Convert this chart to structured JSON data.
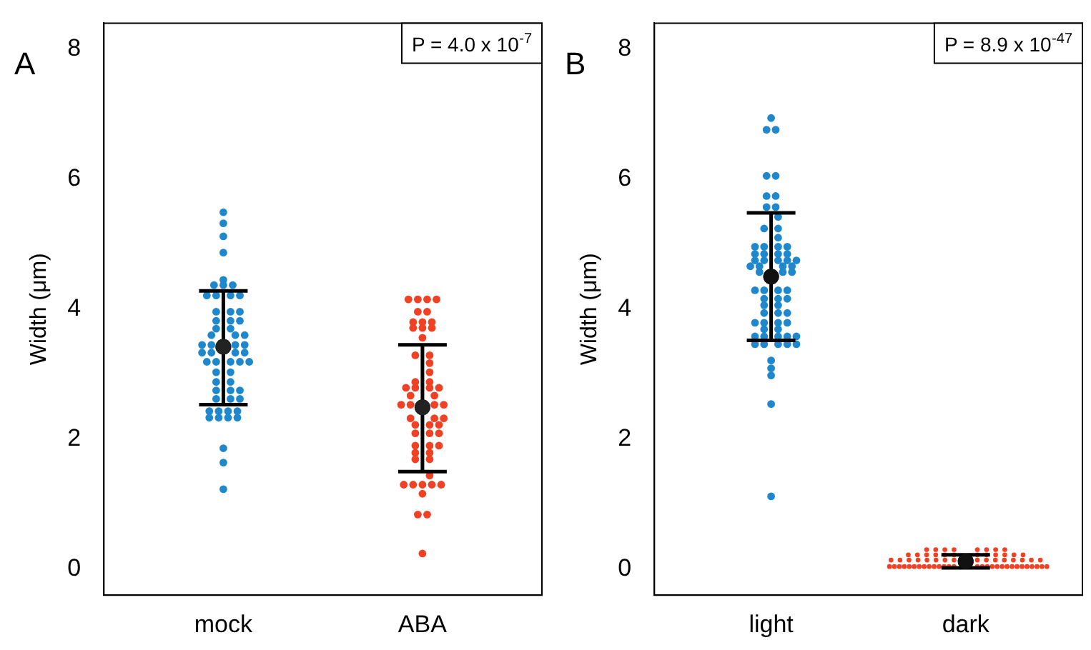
{
  "chart_data": [
    {
      "type": "scatter",
      "categories": [
        "mock",
        "ABA"
      ],
      "ylabel": "Width (μm)",
      "ylim": [
        -0.4,
        8.4
      ],
      "yticks": [
        0,
        2,
        4,
        6,
        8
      ],
      "grid": false,
      "legend": false,
      "marker": "circle",
      "annotations": [
        "A",
        "P = 4.0 x 10$^{-7}$"
      ],
      "series": [
        {
          "color": "#1f88cc",
          "x": [
            "mock",
            "mock",
            "mock",
            "mock",
            "mock",
            "mock",
            "mock",
            "mock",
            "mock",
            "mock",
            "mock",
            "mock",
            "mock",
            "mock",
            "mock",
            "mock",
            "mock",
            "mock",
            "mock",
            "mock",
            "mock",
            "mock",
            "mock",
            "mock",
            "mock",
            "mock",
            "mock",
            "mock",
            "mock",
            "mock",
            "mock",
            "mock",
            "mock",
            "mock",
            "mock",
            "mock",
            "mock",
            "mock",
            "mock",
            "mock",
            "mock",
            "mock",
            "mock",
            "mock",
            "mock",
            "mock",
            "mock",
            "mock",
            "mock",
            "mock",
            "mock",
            "mock",
            "mock",
            "mock",
            "mock",
            "mock",
            "mock"
          ],
          "values": [
            5.49,
            5.32,
            5.12,
            4.87,
            4.45,
            4.37,
            4.37,
            4.37,
            4.21,
            4.21,
            4.21,
            4.21,
            3.96,
            3.96,
            3.96,
            3.82,
            3.82,
            3.82,
            3.7,
            3.7,
            3.6,
            3.6,
            3.6,
            3.45,
            3.45,
            3.45,
            3.45,
            3.33,
            3.33,
            3.33,
            3.33,
            3.19,
            3.19,
            3.19,
            3.19,
            3.19,
            3.03,
            3.03,
            2.88,
            2.88,
            2.75,
            2.75,
            2.75,
            2.62,
            2.62,
            2.62,
            2.43,
            2.43,
            2.43,
            2.43,
            2.33,
            2.33,
            2.33,
            2.33,
            1.86,
            1.64,
            1.23
          ]
        },
        {
          "color": "#f04124",
          "x": [
            "ABA",
            "ABA",
            "ABA",
            "ABA",
            "ABA",
            "ABA",
            "ABA",
            "ABA",
            "ABA",
            "ABA",
            "ABA",
            "ABA",
            "ABA",
            "ABA",
            "ABA",
            "ABA",
            "ABA",
            "ABA",
            "ABA",
            "ABA",
            "ABA",
            "ABA",
            "ABA",
            "ABA",
            "ABA",
            "ABA",
            "ABA",
            "ABA",
            "ABA",
            "ABA",
            "ABA",
            "ABA",
            "ABA",
            "ABA",
            "ABA",
            "ABA",
            "ABA",
            "ABA",
            "ABA",
            "ABA",
            "ABA",
            "ABA",
            "ABA",
            "ABA",
            "ABA",
            "ABA",
            "ABA",
            "ABA",
            "ABA",
            "ABA",
            "ABA",
            "ABA",
            "ABA",
            "ABA",
            "ABA"
          ],
          "values": [
            4.15,
            4.15,
            4.15,
            4.15,
            3.96,
            3.96,
            3.8,
            3.8,
            3.8,
            3.71,
            3.71,
            3.71,
            3.56,
            3.29,
            3.29,
            3.17,
            3.03,
            2.88,
            2.88,
            2.79,
            2.79,
            2.79,
            2.79,
            2.67,
            2.67,
            2.53,
            2.53,
            2.53,
            2.53,
            2.32,
            2.32,
            2.32,
            2.22,
            2.22,
            2.22,
            2.09,
            2.09,
            2.09,
            1.9,
            1.9,
            1.9,
            1.79,
            1.79,
            1.69,
            1.69,
            1.44,
            1.3,
            1.3,
            1.3,
            1.3,
            1.3,
            1.16,
            0.84,
            0.84,
            0.24
          ]
        },
        {
          "color": "#222222",
          "x": [
            "mock",
            "ABA"
          ],
          "values": [
            3.42,
            2.49
          ],
          "errors": [
            [
              2.53,
              4.28
            ],
            [
              1.5,
              3.45
            ]
          ]
        }
      ]
    },
    {
      "type": "scatter",
      "categories": [
        "light",
        "dark"
      ],
      "ylabel": "Width (μm)",
      "ylim": [
        -0.4,
        8.4
      ],
      "yticks": [
        0,
        2,
        4,
        6,
        8
      ],
      "grid": false,
      "legend": false,
      "marker": "circle",
      "annotations": [
        "B",
        "P = 8.9 x 10$^{-47}$"
      ],
      "series": [
        {
          "color": "#1f88cc",
          "x": [
            "light",
            "light",
            "light",
            "light",
            "light",
            "light",
            "light",
            "light",
            "light",
            "light",
            "light",
            "light",
            "light",
            "light",
            "light",
            "light",
            "light",
            "light",
            "light",
            "light",
            "light",
            "light",
            "light",
            "light",
            "light",
            "light",
            "light",
            "light",
            "light",
            "light",
            "light",
            "light",
            "light",
            "light",
            "light",
            "light",
            "light",
            "light",
            "light",
            "light",
            "light",
            "light",
            "light",
            "light",
            "light",
            "light",
            "light",
            "light",
            "light",
            "light",
            "light",
            "light",
            "light",
            "light",
            "light",
            "light",
            "light",
            "light",
            "light",
            "light",
            "light",
            "light",
            "light",
            "light",
            "light",
            "light"
          ],
          "values": [
            6.94,
            6.76,
            6.76,
            6.05,
            6.05,
            5.74,
            5.74,
            5.57,
            5.57,
            5.42,
            5.24,
            5.24,
            5.1,
            4.96,
            4.96,
            4.96,
            4.96,
            4.85,
            4.85,
            4.85,
            4.85,
            4.75,
            4.75,
            4.75,
            4.75,
            4.75,
            4.66,
            4.66,
            4.66,
            4.66,
            4.57,
            4.57,
            4.57,
            4.29,
            4.29,
            4.29,
            4.29,
            4.16,
            4.16,
            4.16,
            4.06,
            4.06,
            3.94,
            3.94,
            3.94,
            3.79,
            3.79,
            3.79,
            3.79,
            3.69,
            3.69,
            3.58,
            3.58,
            3.58,
            3.58,
            3.58,
            3.46,
            3.46,
            3.46,
            3.46,
            3.46,
            3.21,
            3.09,
            2.98,
            2.54,
            1.12
          ]
        },
        {
          "color": "#f04124",
          "x": [
            "dark",
            "dark",
            "dark",
            "dark",
            "dark",
            "dark",
            "dark",
            "dark",
            "dark",
            "dark",
            "dark",
            "dark",
            "dark",
            "dark",
            "dark",
            "dark",
            "dark",
            "dark",
            "dark",
            "dark",
            "dark",
            "dark",
            "dark",
            "dark",
            "dark",
            "dark",
            "dark",
            "dark",
            "dark",
            "dark",
            "dark",
            "dark",
            "dark",
            "dark",
            "dark",
            "dark",
            "dark",
            "dark",
            "dark",
            "dark",
            "dark",
            "dark",
            "dark",
            "dark",
            "dark",
            "dark",
            "dark",
            "dark",
            "dark",
            "dark",
            "dark",
            "dark",
            "dark",
            "dark",
            "dark",
            "dark",
            "dark",
            "dark",
            "dark",
            "dark",
            "dark",
            "dark",
            "dark",
            "dark",
            "dark"
          ],
          "values": [
            0.04,
            0.04,
            0.04,
            0.04,
            0.04,
            0.04,
            0.04,
            0.04,
            0.04,
            0.04,
            0.04,
            0.04,
            0.04,
            0.04,
            0.04,
            0.04,
            0.04,
            0.04,
            0.04,
            0.04,
            0.04,
            0.04,
            0.04,
            0.04,
            0.04,
            0.04,
            0.04,
            0.04,
            0.04,
            0.14,
            0.14,
            0.14,
            0.14,
            0.14,
            0.14,
            0.14,
            0.14,
            0.14,
            0.14,
            0.14,
            0.14,
            0.14,
            0.14,
            0.14,
            0.14,
            0.22,
            0.22,
            0.22,
            0.22,
            0.22,
            0.22,
            0.22,
            0.22,
            0.22,
            0.22,
            0.22,
            0.22,
            0.3,
            0.3,
            0.3,
            0.3,
            0.3,
            0.3,
            0.3,
            0.3
          ]
        },
        {
          "color": "#111111",
          "x": [
            "light",
            "dark"
          ],
          "values": [
            4.5,
            0.12
          ],
          "errors": [
            [
              3.52,
              5.48
            ],
            [
              0.02,
              0.22
            ]
          ]
        }
      ]
    }
  ]
}
